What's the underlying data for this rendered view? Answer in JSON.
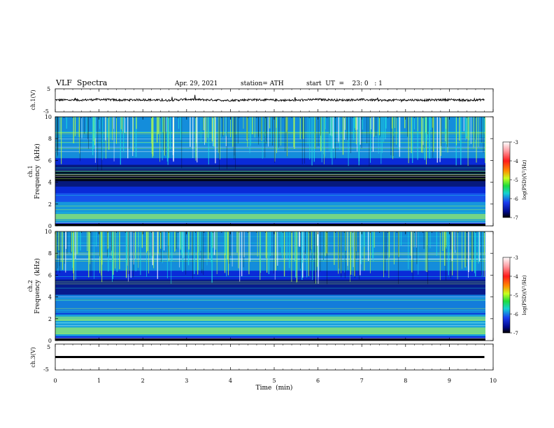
{
  "header": {
    "title": "VLF  Spectra",
    "date": "Apr. 29, 2021",
    "station": "station= ATH",
    "start": "start  UT  =    23: 0   : 1"
  },
  "chart_data": [
    {
      "type": "line",
      "ylabel": "ch.1(V)",
      "ylim": [
        -5,
        5
      ],
      "yticks": [
        "5",
        "-5"
      ],
      "x": [
        0,
        0.5,
        1,
        1.5,
        2,
        2.5,
        3,
        3.5,
        4,
        4.5,
        5,
        5.5,
        6,
        6.5,
        7,
        7.5,
        8,
        8.5,
        9,
        9.5,
        9.8
      ],
      "values": [
        0.2,
        0.1,
        0.4,
        0.1,
        0.3,
        0.0,
        0.4,
        0.2,
        0.0,
        0.3,
        0.1,
        0.0,
        0.4,
        0.1,
        0.3,
        0.0,
        0.2,
        0.1,
        0.3,
        0.0,
        0.3
      ]
    },
    {
      "type": "heatmap",
      "ylabel": "ch.1\nFrequency  (kHz)",
      "ylim": [
        0,
        10
      ],
      "yticks": [
        "0",
        "2",
        "4",
        "6",
        "8",
        "10"
      ],
      "colorbar": {
        "label": "log(PSD)(V²/Hz)",
        "range": [
          -7,
          -3
        ],
        "ticks": [
          "-3",
          "-4",
          "-5",
          "-6",
          "-7"
        ]
      }
    },
    {
      "type": "heatmap",
      "ylabel": "ch.2\nFrequency  (kHz)",
      "ylim": [
        0,
        10
      ],
      "yticks": [
        "0",
        "2",
        "4",
        "6",
        "8",
        "10"
      ],
      "colorbar": {
        "label": "log(PSD)(V²/Hz)",
        "range": [
          -7,
          -3
        ],
        "ticks": [
          "-3",
          "-4",
          "-5",
          "-6",
          "-7"
        ]
      }
    },
    {
      "type": "line",
      "ylabel": "ch.3(V)",
      "ylim": [
        -5,
        5
      ],
      "yticks": [
        "5",
        "-5"
      ],
      "x": [
        0,
        9.8
      ],
      "values": [
        0,
        0
      ]
    }
  ],
  "xaxis": {
    "label": "Time  (min)",
    "range": [
      0,
      10
    ],
    "ticks": [
      "0",
      "1",
      "2",
      "3",
      "4",
      "5",
      "6",
      "7",
      "8",
      "9",
      "10"
    ]
  },
  "colors": {
    "high": "#b5ff4c",
    "mid": "#1edfdf",
    "low": "#0a2bd8",
    "floor": "#000000"
  }
}
